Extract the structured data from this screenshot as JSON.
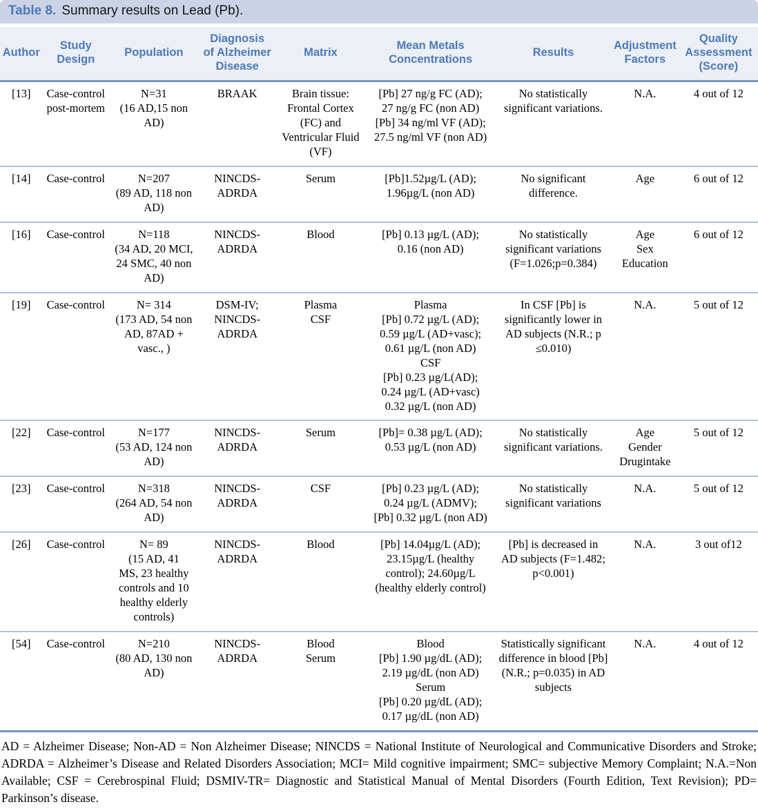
{
  "title": {
    "label": "Table 8.",
    "text": "Summary results on Lead (Pb)."
  },
  "columns": [
    "Author",
    "Study\nDesign",
    "Population",
    "Diagnosis\nof Alzheimer\nDisease",
    "Matrix",
    "Mean Metals\nConcentrations",
    "Results",
    "Adjustment\nFactors",
    "Quality\nAssessment\n(Score)"
  ],
  "rows": [
    {
      "author": "[13]",
      "study_design": "Case-control\npost-mortem",
      "population": "N=31\n(16 AD,15 non\nAD)",
      "diagnosis": "BRAAK",
      "matrix": "Brain tissue:\nFrontal Cortex\n(FC) and\nVentricular Fluid\n(VF)",
      "concentrations": "[Pb] 27 ng/g FC (AD);\n27 ng/g FC (non AD)\n[Pb] 34 ng/ml VF (AD);\n27.5 ng/ml VF (non AD)",
      "results": "No statistically\nsignificant variations.",
      "adjustment": "N.A.",
      "quality": "4 out of 12"
    },
    {
      "author": "[14]",
      "study_design": "Case-control",
      "population": "N=207\n(89 AD, 118 non\nAD)",
      "diagnosis": "NINCDS-\nADRDA",
      "matrix": "Serum",
      "concentrations": "[Pb]1.52µg/L (AD);\n1.96µg/L (non AD)",
      "results": "No significant\ndifference.",
      "adjustment": "Age",
      "quality": "6 out of 12"
    },
    {
      "author": "[16]",
      "study_design": "Case-control",
      "population": "N=118\n(34 AD, 20 MCI,\n24 SMC, 40 non\nAD)",
      "diagnosis": "NINCDS-\nADRDA",
      "matrix": "Blood",
      "concentrations": "[Pb] 0.13 µg/L (AD);\n0.16 (non AD)",
      "results": "No statistically\nsignificant variations\n(F=1.026;p=0.384)",
      "adjustment": "Age\nSex\nEducation",
      "quality": "6 out of 12"
    },
    {
      "author": "[19]",
      "study_design": "Case-control",
      "population": "N= 314\n(173 AD, 54 non\nAD, 87AD +\nvasc., )",
      "diagnosis": "DSM-IV;\nNINCDS-\nADRDA",
      "matrix": "Plasma\nCSF",
      "concentrations": "Plasma\n[Pb] 0.72 µg/L (AD);\n0.59 µg/L (AD+vasc);\n0.61 µg/L (non AD)\nCSF\n[Pb] 0.23 µg/L(AD);\n0.24 µg/L (AD+vasc)\n0.32 µg/L (non AD)",
      "results": "In CSF [Pb] is\nsignificantly lower in\nAD subjects (N.R.; p\n≤0.010)",
      "adjustment": "N.A.",
      "quality": "5 out of 12"
    },
    {
      "author": "[22]",
      "study_design": "Case-control",
      "population": "N=177\n(53 AD, 124 non\nAD)",
      "diagnosis": "NINCDS-\nADRDA",
      "matrix": "Serum",
      "concentrations": "[Pb]= 0.38 µg/L (AD);\n0.53 µg/L (non AD)",
      "results": "No statistically\nsignificant variations.",
      "adjustment": "Age\nGender\nDrugintake",
      "quality": "5 out of 12"
    },
    {
      "author": "[23]",
      "study_design": "Case-control",
      "population": "N=318\n(264 AD, 54 non\nAD)",
      "diagnosis": "NINCDS-\nADRDA",
      "matrix": "CSF",
      "concentrations": "[Pb] 0.23 µg/L (AD);\n0.24 µg/L (ADMV);\n[Pb] 0.32 µg/L (non AD)",
      "results": "No statistically\nsignificant variations",
      "adjustment": "N.A.",
      "quality": "5 out of 12"
    },
    {
      "author": "[26]",
      "study_design": "Case-control",
      "population": "N= 89\n(15 AD, 41\nMS, 23 healthy\ncontrols and 10\nhealthy elderly\ncontrols)",
      "diagnosis": "NINCDS-\nADRDA",
      "matrix": "Blood",
      "concentrations": "[Pb] 14.04µg/L (AD);\n23.15µg/L (healthy\ncontrol); 24.60µg/L\n(healthy elderly control)",
      "results": "[Pb] is decreased in\nAD subjects (F=1.482;\np<0.001)",
      "adjustment": "N.A.",
      "quality": "3 out of12"
    },
    {
      "author": "[54]",
      "study_design": "Case-control",
      "population": "N=210\n(80 AD, 130 non\nAD)",
      "diagnosis": "NINCDS-\nADRDA",
      "matrix": "Blood\nSerum",
      "concentrations": "Blood\n[Pb] 1.90 µg/dL (AD);\n2.19 µg/dL (non AD)\nSerum\n[Pb] 0.20 µg/dL (AD);\n0.17 µg/dL (non AD)",
      "results": "Statistically significant\ndifference in blood [Pb]\n(N.R.; p=0.035) in AD\nsubjects",
      "adjustment": "N.A.",
      "quality": "4 out of 12"
    }
  ],
  "footnote": "AD = Alzheimer Disease; Non-AD = Non Alzheimer Disease; NINCDS = National Institute of Neurological and Communicative Disorders and Stroke; ADRDA = Alzheimer’s Disease and Related Disorders Association; MCI= Mild cognitive impairment; SMC= subjective Memory Complaint; N.A.=Non Available; CSF = Cerebrospinal Fluid; DSMIV-TR= Diagnostic and Statistical Manual of Mental Disorders (Fourth Edition, Text Revision); PD= Parkinson’s disease."
}
